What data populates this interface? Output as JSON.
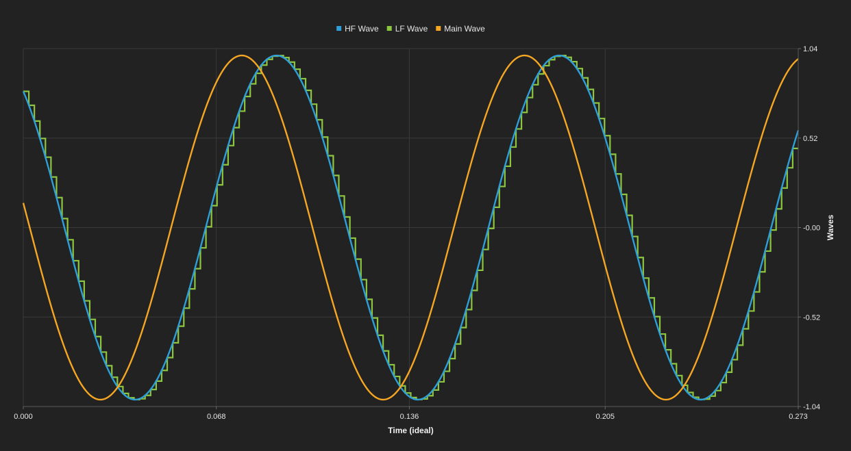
{
  "chart_data": {
    "type": "line",
    "title": "",
    "xlabel": "Time (ideal)",
    "ylabel": "Waves",
    "xlim": [
      0.0,
      0.273
    ],
    "ylim": [
      -1.04,
      1.04
    ],
    "x_ticks": [
      "0.000",
      "0.068",
      "0.136",
      "0.205",
      "0.273"
    ],
    "x_tick_values": [
      0.0,
      0.068,
      0.136,
      0.205,
      0.273
    ],
    "y_ticks": [
      "1.04",
      "0.52",
      "-0.00",
      "-0.52",
      "-1.04"
    ],
    "y_tick_values": [
      1.04,
      0.52,
      0.0,
      -0.52,
      -1.04
    ],
    "grid": true,
    "legend_position": "top-center",
    "y_axis_side": "right",
    "series": [
      {
        "name": "HF Wave",
        "color": "#2e9fd8",
        "style": "line",
        "amplitude": 1.0,
        "period": 0.0996,
        "phase_rad": 0.6575
      },
      {
        "name": "LF Wave",
        "color": "#8cc63f",
        "style": "step",
        "amplitude": 1.0,
        "period": 0.0996,
        "phase_rad": 0.6575,
        "step_width": 0.00195
      },
      {
        "name": "Main Wave",
        "color": "#f5a623",
        "style": "line",
        "amplitude": 1.0,
        "period": 0.0996,
        "phase_rad": 1.4275
      }
    ]
  }
}
